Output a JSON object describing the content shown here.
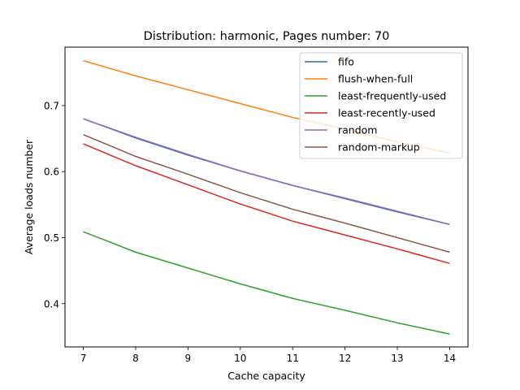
{
  "chart_data": {
    "type": "line",
    "title": "Distribution: harmonic, Pages number: 70",
    "xlabel": "Cache capacity",
    "ylabel": "Average loads number",
    "x": [
      7,
      8,
      9,
      10,
      11,
      12,
      13,
      14
    ],
    "xlim": [
      6.65,
      14.35
    ],
    "ylim": [
      0.3345,
      0.7885
    ],
    "xticks": [
      7,
      8,
      9,
      10,
      11,
      12,
      13,
      14
    ],
    "yticks": [
      0.4,
      0.5,
      0.6,
      0.7
    ],
    "ytick_labels": [
      "0.4",
      "0.5",
      "0.6",
      "0.7"
    ],
    "grid": false,
    "legend_position": "top-right",
    "series": [
      {
        "name": "fifo",
        "color": "#1f77b4",
        "values": [
          0.68,
          0.651,
          0.625,
          0.601,
          0.579,
          0.559,
          0.539,
          0.52
        ]
      },
      {
        "name": "flush-when-full",
        "color": "#ff7f0e",
        "values": [
          0.768,
          0.745,
          0.724,
          0.703,
          0.682,
          0.664,
          0.645,
          0.628
        ]
      },
      {
        "name": "least-frequently-used",
        "color": "#2ca02c",
        "values": [
          0.509,
          0.478,
          0.454,
          0.43,
          0.408,
          0.39,
          0.371,
          0.354
        ]
      },
      {
        "name": "least-recently-used",
        "color": "#d62728",
        "values": [
          0.642,
          0.609,
          0.58,
          0.551,
          0.525,
          0.504,
          0.483,
          0.461
        ]
      },
      {
        "name": "random",
        "color": "#9467bd",
        "values": [
          0.68,
          0.652,
          0.626,
          0.601,
          0.579,
          0.56,
          0.54,
          0.52
        ]
      },
      {
        "name": "random-markup",
        "color": "#8c564b",
        "values": [
          0.656,
          0.623,
          0.596,
          0.568,
          0.543,
          0.522,
          0.5,
          0.478
        ]
      }
    ]
  }
}
